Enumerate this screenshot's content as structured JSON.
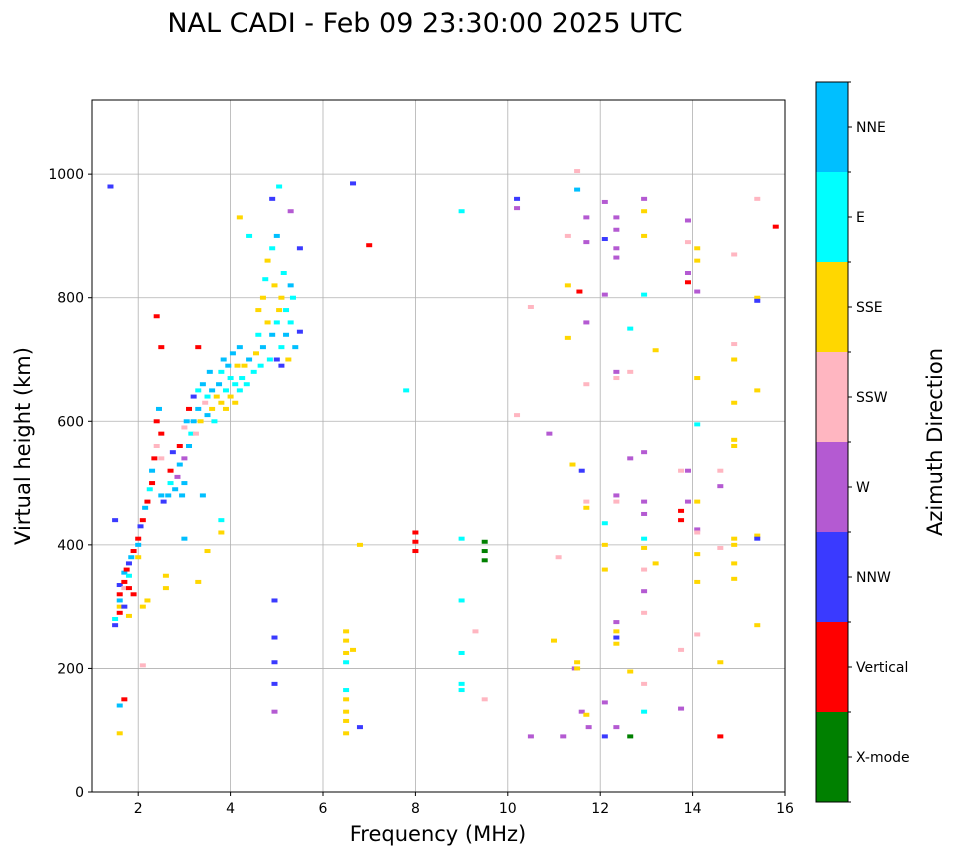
{
  "chart_data": {
    "type": "scatter",
    "title": "NAL CADI - Feb 09 23:30:00 2025 UTC",
    "xlabel": "Frequency (MHz)",
    "ylabel": "Virtual height (km)",
    "xlim": [
      1,
      16
    ],
    "ylim": [
      0,
      1120
    ],
    "xticks": [
      2,
      4,
      6,
      8,
      10,
      12,
      14,
      16
    ],
    "yticks": [
      0,
      200,
      400,
      600,
      800,
      1000
    ],
    "grid": true,
    "colorbar": {
      "label": "Azimuth Direction",
      "categories": [
        "X-mode",
        "Vertical",
        "NNW",
        "W",
        "SSW",
        "SSE",
        "E",
        "NNE"
      ],
      "colors": [
        "#008000",
        "#ff0000",
        "#3a3aff",
        "#b45ad2",
        "#ffb6c1",
        "#ffd700",
        "#00ffff",
        "#00bfff"
      ]
    },
    "trace": [
      [
        1.5,
        280,
        "E"
      ],
      [
        1.5,
        270,
        "NNW"
      ],
      [
        1.6,
        290,
        "Vertical"
      ],
      [
        1.6,
        300,
        "SSE"
      ],
      [
        1.6,
        310,
        "NNE"
      ],
      [
        1.6,
        320,
        "Vertical"
      ],
      [
        1.6,
        335,
        "NNW"
      ],
      [
        1.7,
        340,
        "Vertical"
      ],
      [
        1.7,
        330,
        "SSW"
      ],
      [
        1.7,
        355,
        "NNE"
      ],
      [
        1.75,
        360,
        "Vertical"
      ],
      [
        1.8,
        370,
        "NNW"
      ],
      [
        1.8,
        350,
        "E"
      ],
      [
        1.8,
        330,
        "Vertical"
      ],
      [
        1.85,
        380,
        "NNE"
      ],
      [
        1.9,
        390,
        "Vertical"
      ],
      [
        1.7,
        300,
        "NNW"
      ],
      [
        1.8,
        285,
        "SSE"
      ],
      [
        1.9,
        320,
        "Vertical"
      ],
      [
        2.0,
        400,
        "NNE"
      ],
      [
        2.0,
        410,
        "Vertical"
      ],
      [
        2.0,
        380,
        "SSE"
      ],
      [
        2.05,
        430,
        "NNW"
      ],
      [
        2.1,
        440,
        "Vertical"
      ],
      [
        2.1,
        300,
        "SSE"
      ],
      [
        2.15,
        460,
        "NNE"
      ],
      [
        2.2,
        470,
        "Vertical"
      ],
      [
        2.2,
        310,
        "SSE"
      ],
      [
        2.25,
        490,
        "E"
      ],
      [
        2.3,
        500,
        "Vertical"
      ],
      [
        2.3,
        520,
        "NNE"
      ],
      [
        2.35,
        540,
        "Vertical"
      ],
      [
        2.4,
        560,
        "SSW"
      ],
      [
        2.4,
        600,
        "Vertical"
      ],
      [
        2.45,
        620,
        "NNE"
      ],
      [
        2.5,
        580,
        "Vertical"
      ],
      [
        2.5,
        540,
        "SSW"
      ],
      [
        2.5,
        480,
        "NNE"
      ],
      [
        2.55,
        470,
        "NNW"
      ],
      [
        2.6,
        330,
        "SSE"
      ],
      [
        2.6,
        350,
        "SSE"
      ],
      [
        2.65,
        480,
        "NNE"
      ],
      [
        2.7,
        500,
        "E"
      ],
      [
        2.7,
        520,
        "Vertical"
      ],
      [
        2.75,
        550,
        "NNW"
      ],
      [
        2.8,
        490,
        "NNE"
      ],
      [
        2.85,
        510,
        "W"
      ],
      [
        2.9,
        530,
        "NNE"
      ],
      [
        2.9,
        560,
        "Vertical"
      ],
      [
        2.95,
        480,
        "NNE"
      ],
      [
        3.0,
        500,
        "NNE"
      ],
      [
        3.0,
        540,
        "W"
      ],
      [
        3.0,
        590,
        "SSW"
      ],
      [
        3.05,
        600,
        "NNE"
      ],
      [
        3.1,
        560,
        "NNE"
      ],
      [
        3.1,
        620,
        "Vertical"
      ],
      [
        3.15,
        580,
        "E"
      ],
      [
        3.2,
        600,
        "NNE"
      ],
      [
        3.2,
        640,
        "NNW"
      ],
      [
        3.25,
        580,
        "SSW"
      ],
      [
        3.3,
        620,
        "NNE"
      ],
      [
        3.3,
        650,
        "E"
      ],
      [
        3.35,
        600,
        "SSE"
      ],
      [
        3.4,
        660,
        "NNE"
      ],
      [
        3.45,
        630,
        "SSW"
      ],
      [
        3.5,
        610,
        "NNE"
      ],
      [
        3.5,
        640,
        "E"
      ],
      [
        3.55,
        680,
        "NNE"
      ],
      [
        3.6,
        620,
        "SSE"
      ],
      [
        3.6,
        650,
        "NNE"
      ],
      [
        3.65,
        600,
        "E"
      ],
      [
        3.7,
        640,
        "SSE"
      ],
      [
        3.75,
        660,
        "NNE"
      ],
      [
        3.8,
        630,
        "SSE"
      ],
      [
        3.8,
        680,
        "E"
      ],
      [
        3.85,
        700,
        "NNE"
      ],
      [
        3.9,
        620,
        "SSE"
      ],
      [
        3.9,
        650,
        "E"
      ],
      [
        3.95,
        690,
        "NNE"
      ],
      [
        4.0,
        640,
        "SSE"
      ],
      [
        4.0,
        670,
        "E"
      ],
      [
        4.05,
        710,
        "NNE"
      ],
      [
        4.1,
        630,
        "SSE"
      ],
      [
        4.1,
        660,
        "E"
      ],
      [
        4.15,
        690,
        "SSE"
      ],
      [
        4.2,
        650,
        "E"
      ],
      [
        4.2,
        720,
        "NNE"
      ],
      [
        4.25,
        670,
        "E"
      ],
      [
        4.3,
        690,
        "SSE"
      ],
      [
        4.35,
        660,
        "E"
      ],
      [
        4.4,
        700,
        "NNE"
      ],
      [
        4.5,
        680,
        "E"
      ],
      [
        4.55,
        710,
        "SSE"
      ],
      [
        4.6,
        740,
        "E"
      ],
      [
        4.6,
        780,
        "SSE"
      ],
      [
        4.65,
        690,
        "E"
      ],
      [
        4.7,
        720,
        "NNE"
      ],
      [
        4.7,
        800,
        "SSE"
      ],
      [
        4.75,
        830,
        "E"
      ],
      [
        4.8,
        760,
        "SSE"
      ],
      [
        4.8,
        860,
        "SSE"
      ],
      [
        4.85,
        700,
        "E"
      ],
      [
        4.9,
        740,
        "NNE"
      ],
      [
        4.9,
        880,
        "E"
      ],
      [
        4.95,
        820,
        "SSE"
      ],
      [
        5.0,
        700,
        "NNW"
      ],
      [
        5.0,
        760,
        "E"
      ],
      [
        5.0,
        900,
        "NNE"
      ],
      [
        5.05,
        780,
        "SSE"
      ],
      [
        5.1,
        690,
        "NNW"
      ],
      [
        5.1,
        720,
        "E"
      ],
      [
        5.1,
        800,
        "SSE"
      ],
      [
        5.15,
        840,
        "E"
      ],
      [
        5.2,
        740,
        "NNE"
      ],
      [
        5.2,
        780,
        "E"
      ],
      [
        5.25,
        700,
        "SSE"
      ],
      [
        5.3,
        760,
        "E"
      ],
      [
        5.3,
        820,
        "NNE"
      ],
      [
        5.35,
        800,
        "E"
      ],
      [
        5.4,
        720,
        "NNE"
      ],
      [
        4.9,
        960,
        "NNW"
      ],
      [
        5.05,
        980,
        "E"
      ],
      [
        5.3,
        940,
        "W"
      ],
      [
        5.5,
        880,
        "NNW"
      ],
      [
        5.5,
        745,
        "NNW"
      ],
      [
        4.2,
        930,
        "SSE"
      ],
      [
        4.4,
        900,
        "E"
      ],
      [
        3.3,
        720,
        "Vertical"
      ],
      [
        2.5,
        720,
        "Vertical"
      ],
      [
        2.4,
        770,
        "Vertical"
      ],
      [
        1.4,
        980,
        "NNW"
      ],
      [
        3.0,
        410,
        "NNE"
      ],
      [
        3.4,
        480,
        "NNE"
      ],
      [
        3.8,
        420,
        "SSE"
      ],
      [
        3.8,
        440,
        "E"
      ],
      [
        3.5,
        390,
        "SSE"
      ],
      [
        3.3,
        340,
        "SSE"
      ],
      [
        1.6,
        95,
        "SSE"
      ],
      [
        1.6,
        140,
        "NNE"
      ],
      [
        1.7,
        150,
        "Vertical"
      ],
      [
        1.5,
        440,
        "NNW"
      ],
      [
        2.1,
        205,
        "SSW"
      ],
      [
        4.95,
        310,
        "NNW"
      ],
      [
        4.95,
        250,
        "NNW"
      ],
      [
        4.95,
        210,
        "NNW"
      ],
      [
        4.95,
        175,
        "NNW"
      ],
      [
        4.95,
        130,
        "W"
      ],
      [
        6.5,
        260,
        "SSE"
      ],
      [
        6.5,
        245,
        "SSE"
      ],
      [
        6.5,
        225,
        "SSE"
      ],
      [
        6.5,
        210,
        "E"
      ],
      [
        6.5,
        165,
        "E"
      ],
      [
        6.5,
        150,
        "SSE"
      ],
      [
        6.5,
        130,
        "SSE"
      ],
      [
        6.5,
        115,
        "SSE"
      ],
      [
        6.5,
        95,
        "SSE"
      ],
      [
        6.8,
        105,
        "NNW"
      ],
      [
        6.8,
        400,
        "SSE"
      ],
      [
        6.65,
        230,
        "SSE"
      ],
      [
        6.65,
        985,
        "NNW"
      ],
      [
        7.0,
        885,
        "Vertical"
      ],
      [
        7.8,
        650,
        "E"
      ],
      [
        8.0,
        420,
        "Vertical"
      ],
      [
        8.0,
        405,
        "Vertical"
      ],
      [
        8.0,
        390,
        "Vertical"
      ],
      [
        9.0,
        410,
        "E"
      ],
      [
        9.0,
        310,
        "E"
      ],
      [
        9.0,
        225,
        "E"
      ],
      [
        9.0,
        175,
        "E"
      ],
      [
        9.0,
        165,
        "E"
      ],
      [
        9.0,
        940,
        "E"
      ],
      [
        9.3,
        260,
        "SSW"
      ],
      [
        9.5,
        150,
        "SSW"
      ],
      [
        9.5,
        405,
        "X-mode"
      ],
      [
        9.5,
        390,
        "X-mode"
      ],
      [
        9.5,
        375,
        "X-mode"
      ],
      [
        10.2,
        960,
        "NNW"
      ],
      [
        10.2,
        945,
        "W"
      ],
      [
        10.2,
        610,
        "SSW"
      ],
      [
        10.5,
        785,
        "SSW"
      ],
      [
        10.5,
        90,
        "W"
      ],
      [
        10.9,
        580,
        "W"
      ],
      [
        11.0,
        245,
        "SSE"
      ],
      [
        11.2,
        90,
        "W"
      ],
      [
        11.1,
        380,
        "SSW"
      ],
      [
        11.3,
        900,
        "SSW"
      ],
      [
        11.3,
        820,
        "SSE"
      ],
      [
        11.3,
        735,
        "SSE"
      ],
      [
        11.4,
        530,
        "SSE"
      ],
      [
        11.45,
        200,
        "W"
      ],
      [
        11.5,
        1005,
        "SSW"
      ],
      [
        11.5,
        975,
        "NNE"
      ],
      [
        11.55,
        810,
        "Vertical"
      ],
      [
        11.6,
        520,
        "NNW"
      ],
      [
        11.7,
        890,
        "W"
      ],
      [
        11.7,
        930,
        "W"
      ],
      [
        11.7,
        760,
        "W"
      ],
      [
        11.7,
        660,
        "SSW"
      ],
      [
        11.7,
        470,
        "SSW"
      ],
      [
        11.7,
        460,
        "SSE"
      ],
      [
        11.6,
        130,
        "W"
      ],
      [
        11.7,
        125,
        "SSE"
      ],
      [
        11.75,
        105,
        "W"
      ],
      [
        11.5,
        210,
        "SSE"
      ],
      [
        11.5,
        200,
        "SSE"
      ],
      [
        12.1,
        955,
        "W"
      ],
      [
        12.1,
        895,
        "NNW"
      ],
      [
        12.1,
        805,
        "W"
      ],
      [
        12.1,
        435,
        "E"
      ],
      [
        12.1,
        400,
        "SSE"
      ],
      [
        12.1,
        360,
        "SSE"
      ],
      [
        12.1,
        145,
        "W"
      ],
      [
        12.1,
        90,
        "NNW"
      ],
      [
        12.35,
        930,
        "W"
      ],
      [
        12.35,
        910,
        "W"
      ],
      [
        12.35,
        880,
        "W"
      ],
      [
        12.35,
        865,
        "W"
      ],
      [
        12.35,
        680,
        "W"
      ],
      [
        12.35,
        670,
        "SSW"
      ],
      [
        12.35,
        480,
        "W"
      ],
      [
        12.35,
        470,
        "SSW"
      ],
      [
        12.35,
        275,
        "W"
      ],
      [
        12.35,
        260,
        "SSE"
      ],
      [
        12.35,
        250,
        "NNW"
      ],
      [
        12.35,
        240,
        "SSE"
      ],
      [
        12.35,
        105,
        "W"
      ],
      [
        12.65,
        750,
        "E"
      ],
      [
        12.65,
        680,
        "SSW"
      ],
      [
        12.65,
        540,
        "W"
      ],
      [
        12.65,
        195,
        "SSE"
      ],
      [
        12.65,
        90,
        "X-mode"
      ],
      [
        12.95,
        960,
        "W"
      ],
      [
        12.95,
        940,
        "SSE"
      ],
      [
        12.95,
        900,
        "SSE"
      ],
      [
        12.95,
        805,
        "E"
      ],
      [
        12.95,
        550,
        "W"
      ],
      [
        12.95,
        470,
        "W"
      ],
      [
        12.95,
        450,
        "W"
      ],
      [
        12.95,
        410,
        "E"
      ],
      [
        12.95,
        395,
        "SSE"
      ],
      [
        12.95,
        360,
        "SSW"
      ],
      [
        12.95,
        325,
        "W"
      ],
      [
        12.95,
        290,
        "SSW"
      ],
      [
        12.95,
        175,
        "SSW"
      ],
      [
        12.95,
        130,
        "E"
      ],
      [
        13.2,
        715,
        "SSE"
      ],
      [
        13.2,
        370,
        "SSE"
      ],
      [
        13.75,
        520,
        "SSW"
      ],
      [
        13.75,
        455,
        "Vertical"
      ],
      [
        13.75,
        440,
        "Vertical"
      ],
      [
        13.75,
        230,
        "SSW"
      ],
      [
        13.75,
        135,
        "W"
      ],
      [
        13.9,
        925,
        "W"
      ],
      [
        13.9,
        890,
        "SSW"
      ],
      [
        13.9,
        840,
        "W"
      ],
      [
        13.9,
        825,
        "Vertical"
      ],
      [
        13.9,
        520,
        "W"
      ],
      [
        13.9,
        470,
        "W"
      ],
      [
        14.1,
        880,
        "SSE"
      ],
      [
        14.1,
        860,
        "SSE"
      ],
      [
        14.1,
        810,
        "W"
      ],
      [
        14.1,
        670,
        "SSE"
      ],
      [
        14.1,
        595,
        "E"
      ],
      [
        14.1,
        470,
        "SSE"
      ],
      [
        14.1,
        425,
        "W"
      ],
      [
        14.1,
        420,
        "SSW"
      ],
      [
        14.1,
        385,
        "SSE"
      ],
      [
        14.1,
        340,
        "SSE"
      ],
      [
        14.1,
        255,
        "SSW"
      ],
      [
        14.6,
        520,
        "SSW"
      ],
      [
        14.6,
        495,
        "W"
      ],
      [
        14.6,
        395,
        "SSW"
      ],
      [
        14.6,
        210,
        "SSE"
      ],
      [
        14.6,
        90,
        "Vertical"
      ],
      [
        14.9,
        870,
        "SSW"
      ],
      [
        14.9,
        725,
        "SSW"
      ],
      [
        14.9,
        700,
        "SSE"
      ],
      [
        14.9,
        630,
        "SSE"
      ],
      [
        14.9,
        570,
        "SSE"
      ],
      [
        14.9,
        560,
        "SSE"
      ],
      [
        14.9,
        410,
        "SSE"
      ],
      [
        14.9,
        400,
        "SSE"
      ],
      [
        14.9,
        370,
        "SSE"
      ],
      [
        14.9,
        345,
        "SSE"
      ],
      [
        15.4,
        960,
        "SSW"
      ],
      [
        15.4,
        800,
        "SSE"
      ],
      [
        15.4,
        795,
        "NNW"
      ],
      [
        15.4,
        650,
        "SSE"
      ],
      [
        15.4,
        415,
        "SSE"
      ],
      [
        15.4,
        410,
        "NNW"
      ],
      [
        15.4,
        270,
        "SSE"
      ],
      [
        15.8,
        915,
        "Vertical"
      ]
    ]
  }
}
